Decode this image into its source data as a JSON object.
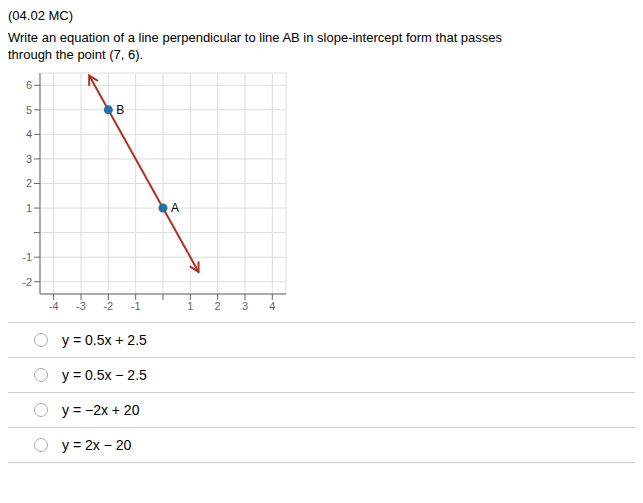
{
  "chart_data": {
    "type": "line",
    "title": "(04.02 MC)",
    "subtitle": [
      "Write an equation of a line perpendicular to line AB in slope-intercept form that passes",
      "through the point (7, 6)."
    ],
    "xlim": [
      -4.5,
      4.5
    ],
    "ylim": [
      -2.5,
      6.5
    ],
    "xticks": [
      -4,
      -3,
      -2,
      -1,
      {
        "value": 0,
        "label": ""
      },
      1,
      2,
      3,
      4
    ],
    "yticks": [
      -2,
      -1,
      {
        "value": 0,
        "label": ""
      },
      1,
      2,
      3,
      4,
      5,
      6
    ],
    "grid": true,
    "series": [
      {
        "type": "line",
        "color": "#b03020",
        "marker": "arrow",
        "x": [
          -2.7,
          1.3
        ],
        "values": [
          6.4,
          -1.6
        ]
      },
      {
        "type": "scatter",
        "color": "#2471a3",
        "marker": "circle",
        "x": [
          0,
          -2
        ],
        "values": [
          1,
          5
        ]
      }
    ],
    "annotations": [
      {
        "text": "A",
        "x": 0,
        "y": 1
      },
      {
        "text": "B",
        "x": -2,
        "y": 5
      },
      {
        "text": "y = 0.5x + 2.5"
      },
      {
        "text": "y = 0.5x − 2.5"
      },
      {
        "text": "y = −2x + 20"
      },
      {
        "text": "y = 2x − 20"
      }
    ]
  }
}
